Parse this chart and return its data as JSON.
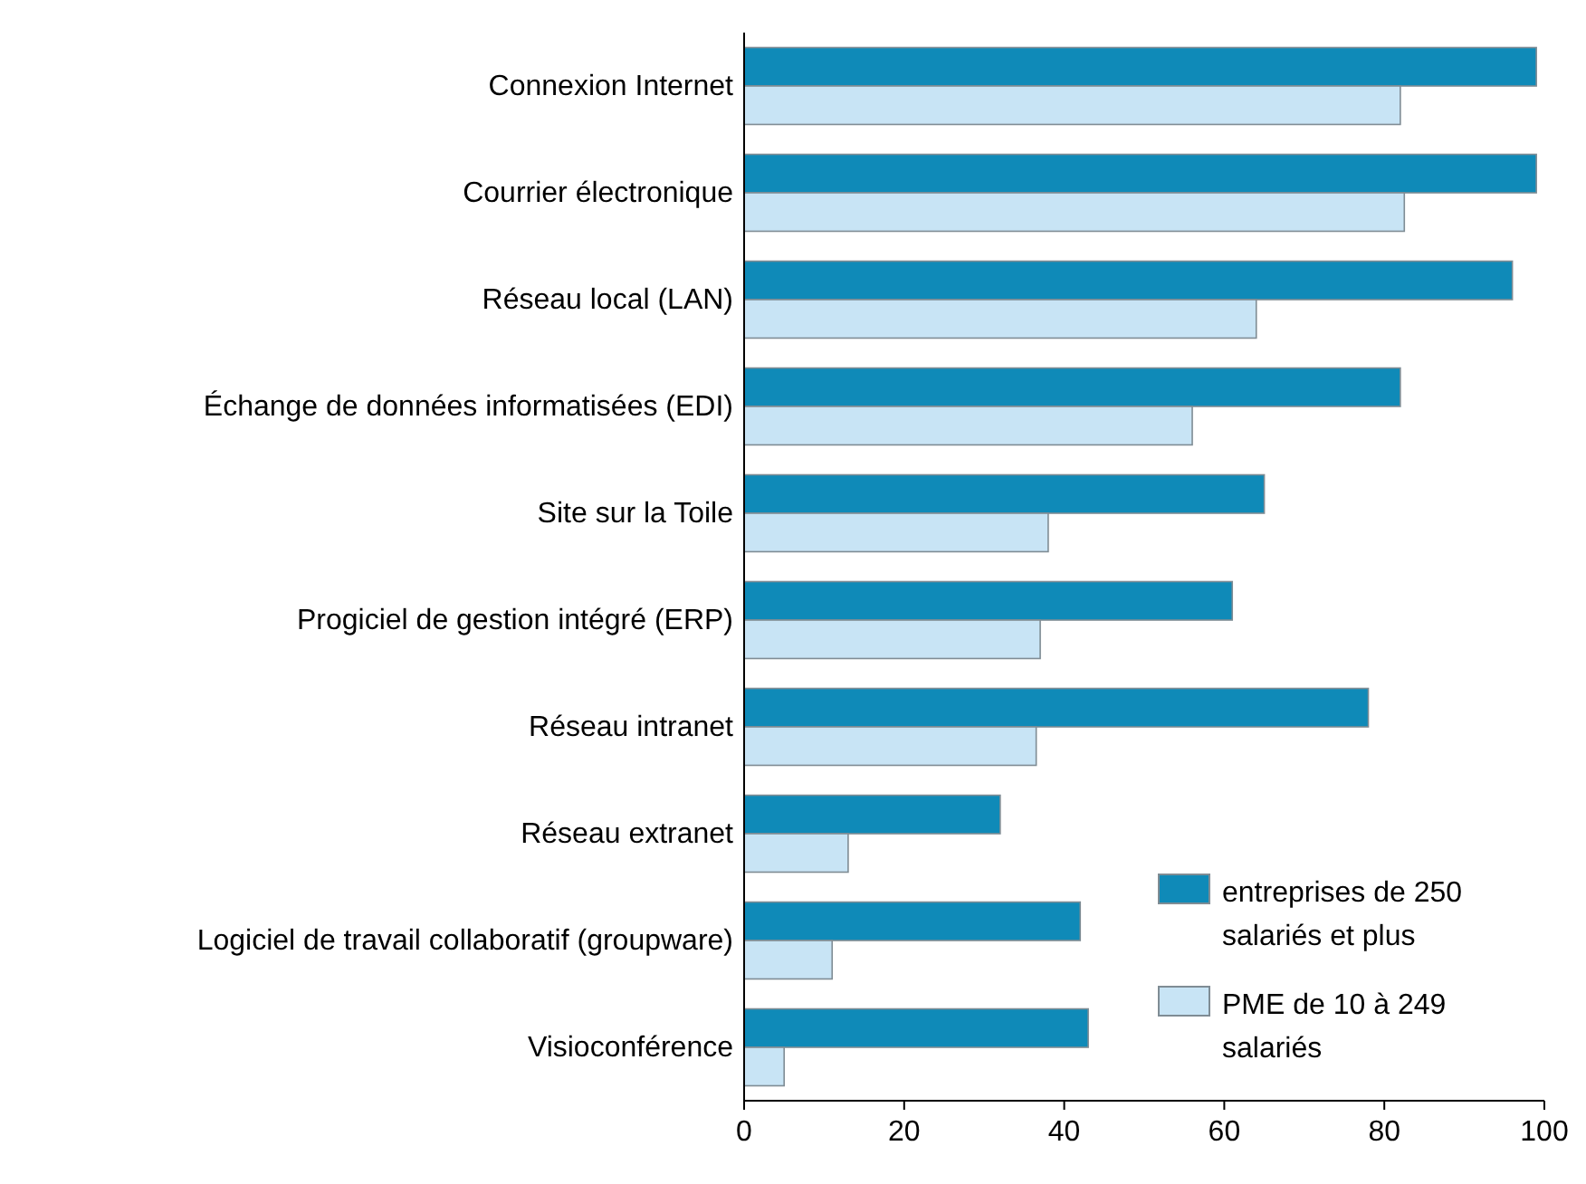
{
  "chart_data": {
    "type": "bar",
    "orientation": "horizontal",
    "categories": [
      "Connexion Internet",
      "Courrier électronique",
      "Réseau local (LAN)",
      "Échange de données informatisées (EDI) ",
      "Site sur la Toile",
      "Progiciel de gestion intégré (ERP)",
      "Réseau intranet ",
      "Réseau extranet",
      "Logiciel de travail collaboratif (groupware)",
      "Visioconférence"
    ],
    "series": [
      {
        "name": "entreprises de 250 salariés et plus",
        "color": "#0f8ab8",
        "values": [
          99,
          99,
          96,
          82,
          65,
          61,
          78,
          32,
          42,
          43
        ]
      },
      {
        "name": "PME de 10 à 249 salariés",
        "color": "#c8e4f5",
        "values": [
          82,
          82.5,
          64,
          56,
          38,
          37,
          36.5,
          13,
          11,
          5
        ]
      }
    ],
    "xlim": [
      0,
      100
    ],
    "xticks": [
      0,
      20,
      40,
      60,
      80,
      100
    ],
    "grid": false,
    "legend": "bottom right"
  }
}
